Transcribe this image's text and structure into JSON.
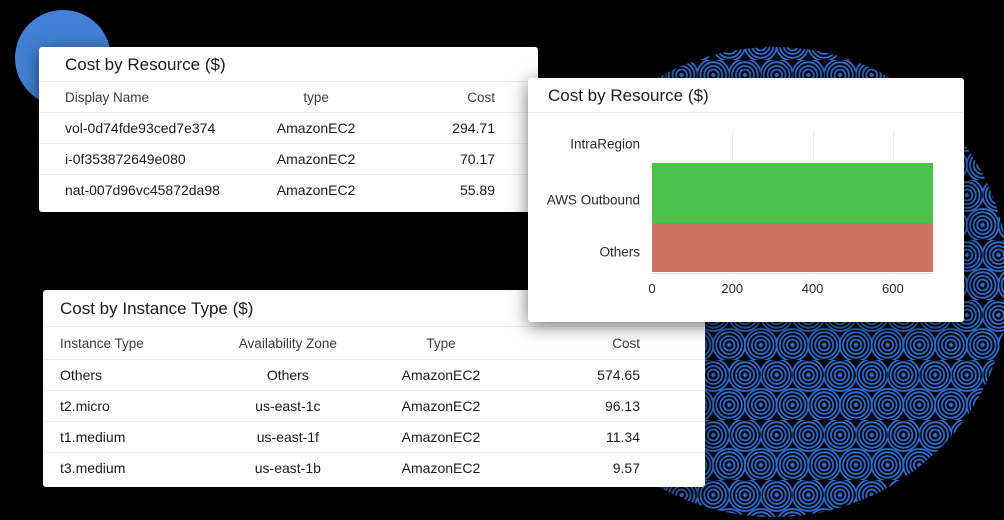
{
  "canvas": {
    "background": "#000000",
    "card_background": "#FFFFFF"
  },
  "decor": {
    "blue_circle_color": "#4281D6",
    "pattern_circle_color": "#2F6FD2"
  },
  "resource_table": {
    "title": "Cost by Resource ($)",
    "columns": [
      "Display Name",
      "type",
      "Cost"
    ],
    "rows": [
      [
        "vol-0d74fde93ced7e374",
        "AmazonEC2",
        "294.71"
      ],
      [
        "i-0f353872649e080",
        "AmazonEC2",
        "70.17"
      ],
      [
        "nat-007d96vc45872da98",
        "AmazonEC2",
        "55.89"
      ]
    ]
  },
  "instance_table": {
    "title": "Cost by Instance Type ($)",
    "columns": [
      "Instance Type",
      "Availability Zone",
      "Type",
      "Cost"
    ],
    "rows": [
      [
        "Others",
        "Others",
        "AmazonEC2",
        "574.65"
      ],
      [
        "t2.micro",
        "us-east-1c",
        "AmazonEC2",
        "96.13"
      ],
      [
        "t1.medium",
        "us-east-1f",
        "AmazonEC2",
        "11.34"
      ],
      [
        "t3.medium",
        "us-east-1b",
        "AmazonEC2",
        "9.57"
      ]
    ]
  },
  "chart_data": {
    "type": "bar",
    "orientation": "horizontal",
    "title": "Cost by Resource ($)",
    "categories": [
      "IntraRegion",
      "AWS Outbound",
      "Others"
    ],
    "values": [
      0,
      700,
      700
    ],
    "bar_colors": [
      "#4CC24D",
      "#4CC24D",
      "#CE7265"
    ],
    "xticks": [
      0,
      200,
      400,
      600
    ],
    "xlim": [
      0,
      700
    ],
    "grid": true,
    "legend": false
  }
}
